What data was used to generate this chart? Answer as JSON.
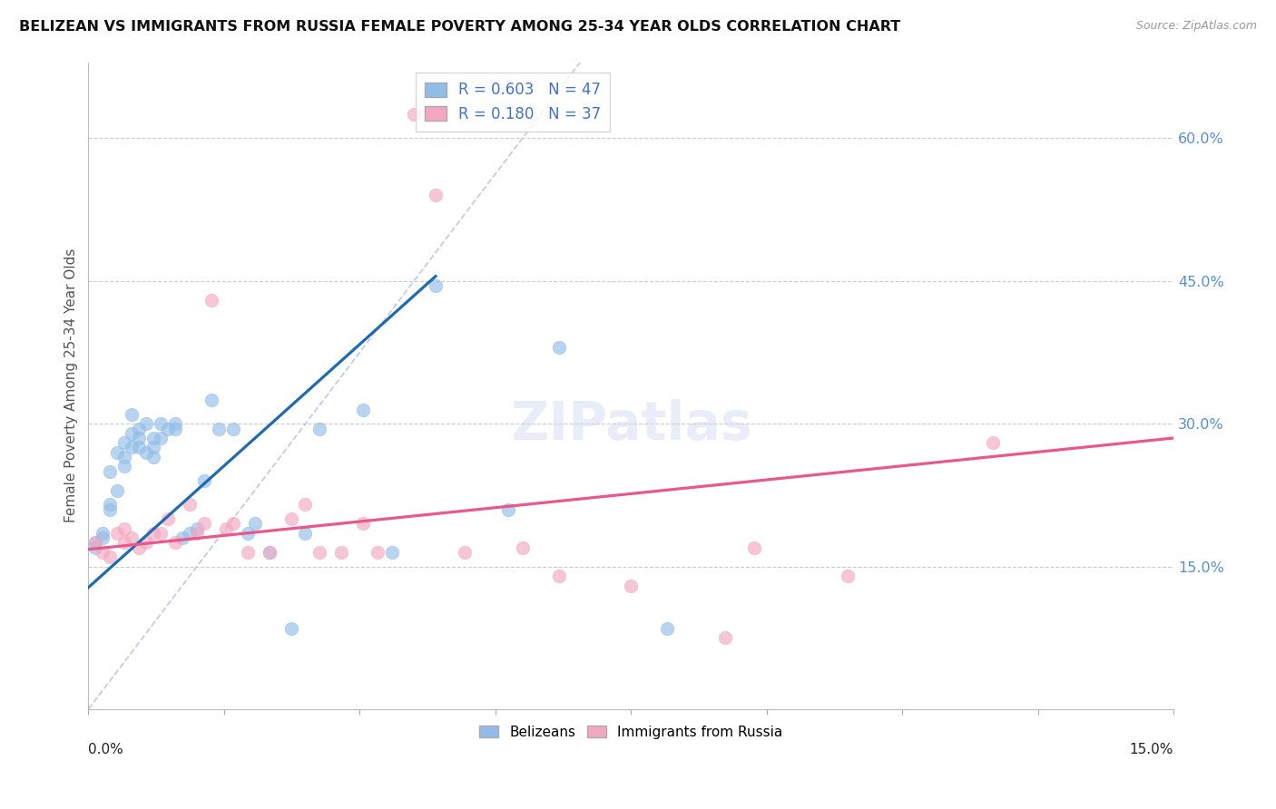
{
  "title": "BELIZEAN VS IMMIGRANTS FROM RUSSIA FEMALE POVERTY AMONG 25-34 YEAR OLDS CORRELATION CHART",
  "source": "Source: ZipAtlas.com",
  "ylabel": "Female Poverty Among 25-34 Year Olds",
  "xmin": 0.0,
  "xmax": 0.15,
  "ymin": 0.0,
  "ymax": 0.68,
  "ytick_vals": [
    0.15,
    0.3,
    0.45,
    0.6
  ],
  "ytick_labels": [
    "15.0%",
    "30.0%",
    "45.0%",
    "60.0%"
  ],
  "belizean_color": "#92bde8",
  "russia_color": "#f4a8c0",
  "belizean_line_color": "#1f6bb0",
  "russia_line_color": "#e8588a",
  "ref_line_color": "#b0bcd8",
  "belizean_line_x0": 0.0,
  "belizean_line_y0": 0.128,
  "belizean_line_x1": 0.048,
  "belizean_line_y1": 0.455,
  "russia_line_x0": 0.0,
  "russia_line_y0": 0.168,
  "russia_line_x1": 0.15,
  "russia_line_y1": 0.285,
  "ref_line_x0": 0.0,
  "ref_line_y0": 0.0,
  "ref_line_x1": 0.068,
  "ref_line_y1": 0.68,
  "belizean_x": [
    0.001,
    0.001,
    0.002,
    0.002,
    0.003,
    0.003,
    0.003,
    0.004,
    0.004,
    0.005,
    0.005,
    0.005,
    0.006,
    0.006,
    0.006,
    0.007,
    0.007,
    0.007,
    0.008,
    0.008,
    0.009,
    0.009,
    0.009,
    0.01,
    0.01,
    0.011,
    0.012,
    0.012,
    0.013,
    0.014,
    0.015,
    0.016,
    0.017,
    0.018,
    0.02,
    0.022,
    0.023,
    0.025,
    0.028,
    0.03,
    0.032,
    0.038,
    0.042,
    0.048,
    0.058,
    0.065,
    0.08
  ],
  "belizean_y": [
    0.17,
    0.175,
    0.18,
    0.185,
    0.21,
    0.215,
    0.25,
    0.23,
    0.27,
    0.255,
    0.265,
    0.28,
    0.275,
    0.29,
    0.31,
    0.295,
    0.275,
    0.285,
    0.3,
    0.27,
    0.285,
    0.265,
    0.275,
    0.285,
    0.3,
    0.295,
    0.3,
    0.295,
    0.18,
    0.185,
    0.19,
    0.24,
    0.325,
    0.295,
    0.295,
    0.185,
    0.195,
    0.165,
    0.085,
    0.185,
    0.295,
    0.315,
    0.165,
    0.445,
    0.21,
    0.38,
    0.085
  ],
  "russia_x": [
    0.001,
    0.002,
    0.003,
    0.004,
    0.005,
    0.005,
    0.006,
    0.007,
    0.008,
    0.009,
    0.01,
    0.011,
    0.012,
    0.014,
    0.015,
    0.016,
    0.017,
    0.019,
    0.02,
    0.022,
    0.025,
    0.028,
    0.03,
    0.032,
    0.035,
    0.038,
    0.04,
    0.045,
    0.048,
    0.052,
    0.06,
    0.065,
    0.075,
    0.088,
    0.092,
    0.105,
    0.125
  ],
  "russia_y": [
    0.175,
    0.165,
    0.16,
    0.185,
    0.175,
    0.19,
    0.18,
    0.17,
    0.175,
    0.185,
    0.185,
    0.2,
    0.175,
    0.215,
    0.185,
    0.195,
    0.43,
    0.19,
    0.195,
    0.165,
    0.165,
    0.2,
    0.215,
    0.165,
    0.165,
    0.195,
    0.165,
    0.625,
    0.54,
    0.165,
    0.17,
    0.14,
    0.13,
    0.075,
    0.17,
    0.14,
    0.28
  ]
}
